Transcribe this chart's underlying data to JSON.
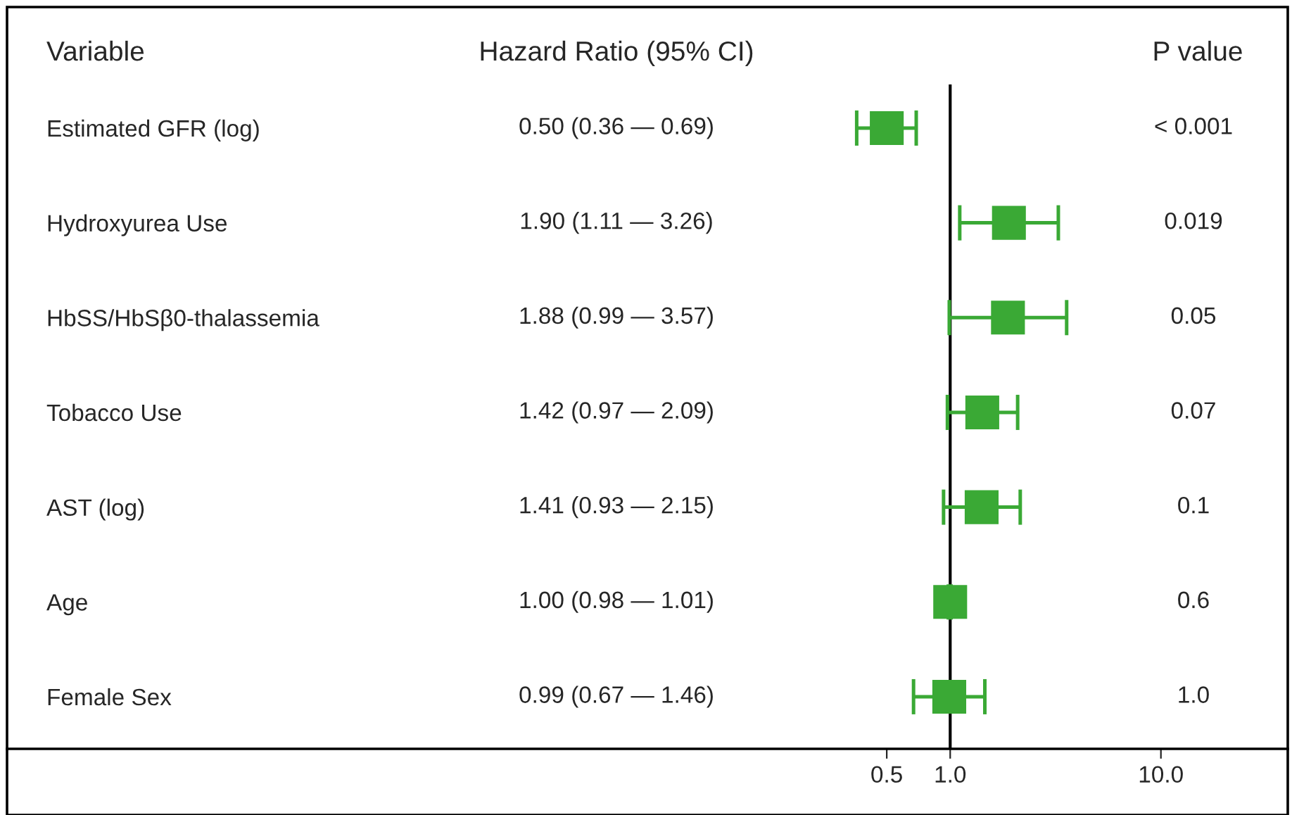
{
  "chart_data": {
    "type": "scatter",
    "orientation": "horizontal",
    "categories": [
      "Estimated GFR (log)",
      "Hydroxyurea Use",
      "HbSS/HbSβ0-thalassemia",
      "Tobacco Use",
      "AST (log)",
      "Age",
      "Female Sex"
    ],
    "values": [
      0.5,
      1.9,
      1.88,
      1.42,
      1.41,
      1.0,
      0.99
    ],
    "errors": [
      [
        0.36,
        0.69
      ],
      [
        1.11,
        3.26
      ],
      [
        0.99,
        3.57
      ],
      [
        0.97,
        2.09
      ],
      [
        0.93,
        2.15
      ],
      [
        0.98,
        1.01
      ],
      [
        0.67,
        1.46
      ]
    ],
    "annotations": [
      "Variable",
      "Hazard Ratio (95% CI)",
      "P value",
      "0.50 (0.36 — 0.69)",
      "1.90 (1.11 — 3.26)",
      "1.88 (0.99 — 3.57)",
      "1.42 (0.97 — 2.09)",
      "1.41 (0.93 — 2.15)",
      "1.00 (0.98 — 1.01)",
      "0.99 (0.67 — 1.46)",
      "< 0.001",
      "0.019",
      "0.05",
      "0.07",
      "0.1",
      "0.6",
      "1.0"
    ],
    "color": "#3aa935",
    "marker": "square",
    "log": "x",
    "xlim": [
      3.343e-05,
      40
    ],
    "xticks": [
      0.5,
      {
        "value": 1,
        "label": "1.0"
      },
      {
        "value": 10,
        "label": "10.0"
      }
    ],
    "ref_lines": [
      {
        "axis": "x",
        "value": 1,
        "color": "#000000"
      }
    ],
    "grid": false,
    "legend": false
  }
}
